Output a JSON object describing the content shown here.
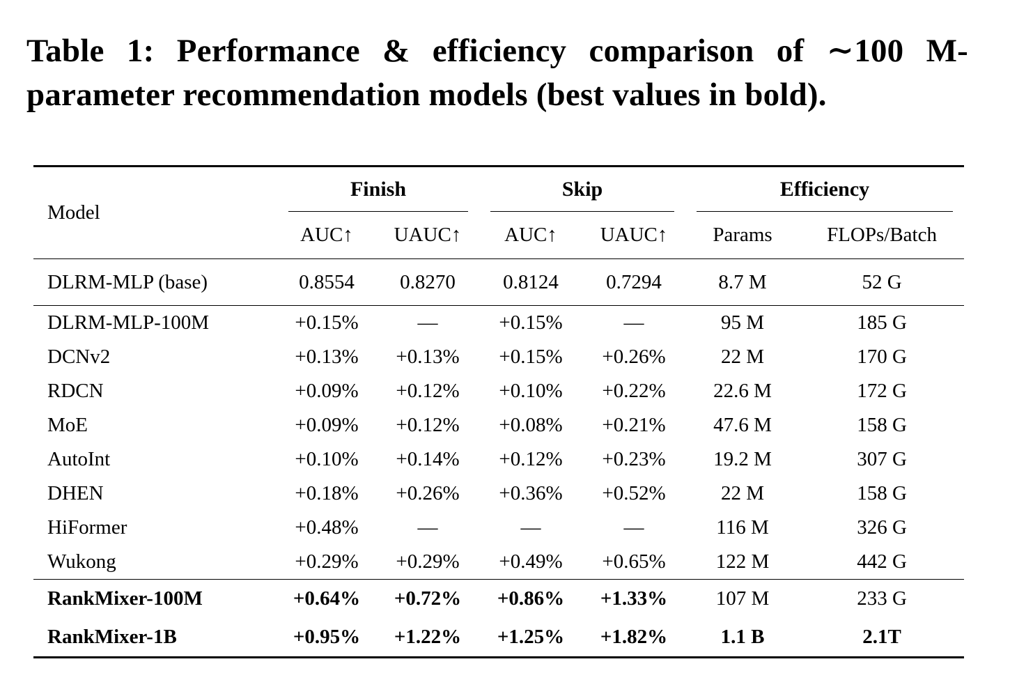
{
  "caption": {
    "lines": [
      "Table 1: Performance & efficiency comparison of ∼100 M-",
      "parameter recommendation models (best values in bold)."
    ]
  },
  "table": {
    "header": {
      "model_col": "Model",
      "groups": [
        {
          "label": "Finish",
          "subcols": [
            "AUC↑",
            "UAUC↑"
          ]
        },
        {
          "label": "Skip",
          "subcols": [
            "AUC↑",
            "UAUC↑"
          ]
        },
        {
          "label": "Efficiency",
          "subcols": [
            "Params",
            "FLOPs/Batch"
          ]
        }
      ]
    },
    "sections": [
      {
        "name": "baseline",
        "rows": [
          {
            "model": "DLRM-MLP (base)",
            "model_bold": false,
            "cells": [
              "0.8554",
              "0.8270",
              "0.8124",
              "0.7294",
              "8.7 M",
              "52 G"
            ],
            "bold": [
              false,
              false,
              false,
              false,
              false,
              false
            ]
          }
        ]
      },
      {
        "name": "comparison-models",
        "rows": [
          {
            "model": "DLRM-MLP-100M",
            "model_bold": false,
            "cells": [
              "+0.15%",
              "—",
              "+0.15%",
              "—",
              "95 M",
              "185 G"
            ],
            "bold": [
              false,
              false,
              false,
              false,
              false,
              false
            ]
          },
          {
            "model": "DCNv2",
            "model_bold": false,
            "cells": [
              "+0.13%",
              "+0.13%",
              "+0.15%",
              "+0.26%",
              "22 M",
              "170 G"
            ],
            "bold": [
              false,
              false,
              false,
              false,
              false,
              false
            ]
          },
          {
            "model": "RDCN",
            "model_bold": false,
            "cells": [
              "+0.09%",
              "+0.12%",
              "+0.10%",
              "+0.22%",
              "22.6 M",
              "172 G"
            ],
            "bold": [
              false,
              false,
              false,
              false,
              false,
              false
            ]
          },
          {
            "model": "MoE",
            "model_bold": false,
            "cells": [
              "+0.09%",
              "+0.12%",
              "+0.08%",
              "+0.21%",
              "47.6 M",
              "158 G"
            ],
            "bold": [
              false,
              false,
              false,
              false,
              false,
              false
            ]
          },
          {
            "model": "AutoInt",
            "model_bold": false,
            "cells": [
              "+0.10%",
              "+0.14%",
              "+0.12%",
              "+0.23%",
              "19.2 M",
              "307 G"
            ],
            "bold": [
              false,
              false,
              false,
              false,
              false,
              false
            ]
          },
          {
            "model": "DHEN",
            "model_bold": false,
            "cells": [
              "+0.18%",
              "+0.26%",
              "+0.36%",
              "+0.52%",
              "22 M",
              "158 G"
            ],
            "bold": [
              false,
              false,
              false,
              false,
              false,
              false
            ]
          },
          {
            "model": "HiFormer",
            "model_bold": false,
            "cells": [
              "+0.48%",
              "—",
              "—",
              "—",
              "116 M",
              "326 G"
            ],
            "bold": [
              false,
              false,
              false,
              false,
              false,
              false
            ]
          },
          {
            "model": "Wukong",
            "model_bold": false,
            "cells": [
              "+0.29%",
              "+0.29%",
              "+0.49%",
              "+0.65%",
              "122 M",
              "442 G"
            ],
            "bold": [
              false,
              false,
              false,
              false,
              false,
              false
            ]
          }
        ]
      },
      {
        "name": "rankmixer-models",
        "rows": [
          {
            "model": "RankMixer-100M",
            "model_bold": true,
            "cells": [
              "+0.64%",
              "+0.72%",
              "+0.86%",
              "+1.33%",
              "107 M",
              "233 G"
            ],
            "bold": [
              true,
              true,
              true,
              true,
              false,
              false
            ]
          },
          {
            "model": "RankMixer-1B",
            "model_bold": true,
            "cells": [
              "+0.95%",
              "+1.22%",
              "+1.25%",
              "+1.82%",
              "1.1 B",
              "2.1T"
            ],
            "bold": [
              true,
              true,
              true,
              true,
              true,
              true
            ]
          }
        ]
      }
    ]
  },
  "colors": {
    "text": "#000000",
    "background": "#ffffff",
    "rule": "#000000"
  }
}
